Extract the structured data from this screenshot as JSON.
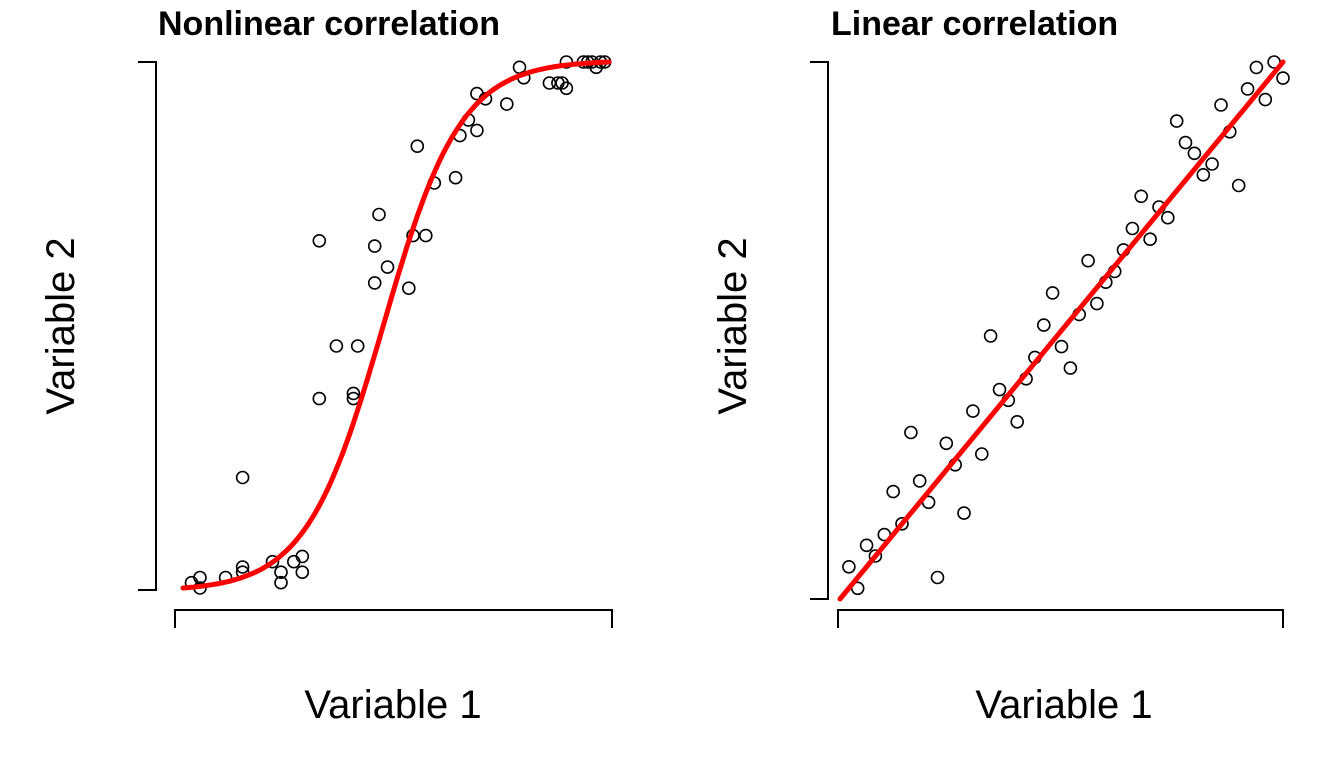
{
  "chart_data": [
    {
      "type": "scatter",
      "title": "Nonlinear correlation",
      "xlabel": "Variable 1",
      "ylabel": "Variable 2",
      "xlim": [
        0,
        1
      ],
      "ylim": [
        0,
        1
      ],
      "tick_labels_shown": false,
      "grid": false,
      "fit_line": {
        "shape": "sigmoid",
        "color": "#ff0000"
      },
      "point_style": "open-circle",
      "points": [
        [
          0.02,
          0.01
        ],
        [
          0.04,
          0.02
        ],
        [
          0.04,
          0.0
        ],
        [
          0.1,
          0.02
        ],
        [
          0.14,
          0.03
        ],
        [
          0.14,
          0.04
        ],
        [
          0.14,
          0.21
        ],
        [
          0.21,
          0.05
        ],
        [
          0.23,
          0.01
        ],
        [
          0.23,
          0.03
        ],
        [
          0.26,
          0.05
        ],
        [
          0.28,
          0.06
        ],
        [
          0.28,
          0.03
        ],
        [
          0.32,
          0.36
        ],
        [
          0.32,
          0.66
        ],
        [
          0.36,
          0.46
        ],
        [
          0.4,
          0.36
        ],
        [
          0.4,
          0.37
        ],
        [
          0.41,
          0.46
        ],
        [
          0.45,
          0.58
        ],
        [
          0.45,
          0.65
        ],
        [
          0.46,
          0.71
        ],
        [
          0.48,
          0.61
        ],
        [
          0.53,
          0.57
        ],
        [
          0.54,
          0.67
        ],
        [
          0.55,
          0.84
        ],
        [
          0.57,
          0.67
        ],
        [
          0.59,
          0.77
        ],
        [
          0.64,
          0.78
        ],
        [
          0.65,
          0.86
        ],
        [
          0.67,
          0.89
        ],
        [
          0.69,
          0.87
        ],
        [
          0.69,
          0.94
        ],
        [
          0.71,
          0.93
        ],
        [
          0.76,
          0.92
        ],
        [
          0.79,
          0.99
        ],
        [
          0.8,
          0.97
        ],
        [
          0.86,
          0.96
        ],
        [
          0.88,
          0.96
        ],
        [
          0.89,
          0.96
        ],
        [
          0.9,
          1.0
        ],
        [
          0.9,
          0.95
        ],
        [
          0.94,
          1.0
        ],
        [
          0.95,
          1.0
        ],
        [
          0.96,
          1.0
        ],
        [
          0.97,
          0.99
        ],
        [
          0.98,
          1.0
        ],
        [
          0.99,
          1.0
        ]
      ]
    },
    {
      "type": "scatter",
      "title": "Linear correlation",
      "xlabel": "Variable 1",
      "ylabel": "Variable 2",
      "xlim": [
        0,
        1
      ],
      "ylim": [
        0,
        1
      ],
      "tick_labels_shown": false,
      "grid": false,
      "fit_line": {
        "shape": "linear",
        "color": "#ff0000"
      },
      "point_style": "open-circle",
      "points": [
        [
          0.02,
          0.06
        ],
        [
          0.04,
          0.02
        ],
        [
          0.06,
          0.1
        ],
        [
          0.08,
          0.08
        ],
        [
          0.1,
          0.12
        ],
        [
          0.12,
          0.2
        ],
        [
          0.14,
          0.14
        ],
        [
          0.16,
          0.31
        ],
        [
          0.18,
          0.22
        ],
        [
          0.2,
          0.18
        ],
        [
          0.22,
          0.04
        ],
        [
          0.24,
          0.29
        ],
        [
          0.26,
          0.25
        ],
        [
          0.28,
          0.16
        ],
        [
          0.3,
          0.35
        ],
        [
          0.32,
          0.27
        ],
        [
          0.34,
          0.49
        ],
        [
          0.36,
          0.39
        ],
        [
          0.38,
          0.37
        ],
        [
          0.4,
          0.33
        ],
        [
          0.42,
          0.41
        ],
        [
          0.44,
          0.45
        ],
        [
          0.46,
          0.51
        ],
        [
          0.48,
          0.57
        ],
        [
          0.5,
          0.47
        ],
        [
          0.52,
          0.43
        ],
        [
          0.54,
          0.53
        ],
        [
          0.56,
          0.63
        ],
        [
          0.58,
          0.55
        ],
        [
          0.6,
          0.59
        ],
        [
          0.62,
          0.61
        ],
        [
          0.64,
          0.65
        ],
        [
          0.66,
          0.69
        ],
        [
          0.68,
          0.75
        ],
        [
          0.7,
          0.67
        ],
        [
          0.72,
          0.73
        ],
        [
          0.74,
          0.71
        ],
        [
          0.76,
          0.89
        ],
        [
          0.78,
          0.85
        ],
        [
          0.8,
          0.83
        ],
        [
          0.82,
          0.79
        ],
        [
          0.84,
          0.81
        ],
        [
          0.86,
          0.92
        ],
        [
          0.88,
          0.87
        ],
        [
          0.9,
          0.77
        ],
        [
          0.92,
          0.95
        ],
        [
          0.94,
          0.99
        ],
        [
          0.96,
          0.93
        ],
        [
          0.98,
          1.0
        ],
        [
          1.0,
          0.97
        ]
      ]
    }
  ]
}
